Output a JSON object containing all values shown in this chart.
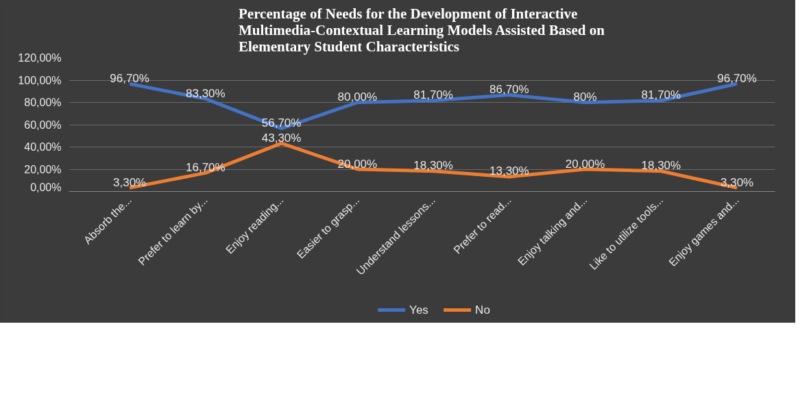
{
  "chart_data": {
    "type": "line",
    "title": "Percentage of Needs for the Development of Interactive Multimedia-Contextual Learning Models Assisted Based on Elementary Student Characteristics",
    "categories": [
      "Absorb the...",
      "Prefer to learn by...",
      "Enjoy reading...",
      "Easier to grasp...",
      "Understand lessons...",
      "Prefer to read...",
      "Enjoy talking and...",
      "Like to utilize tools...",
      "Enjoy games and..."
    ],
    "series": [
      {
        "name": "Yes",
        "color": "#4472c4",
        "values": [
          96.7,
          83.3,
          56.7,
          80.0,
          81.7,
          86.7,
          80,
          81.7,
          96.7
        ],
        "value_labels": [
          "96,70%",
          "83,30%",
          "56,70%",
          "80,00%",
          "81,70%",
          "86,70%",
          "80%",
          "81,70%",
          "96,70%"
        ]
      },
      {
        "name": "No",
        "color": "#ed7d31",
        "values": [
          3.3,
          16.7,
          43.3,
          20.0,
          18.3,
          13.3,
          20.0,
          18.3,
          3.3
        ],
        "value_labels": [
          "3,30%",
          "16,70%",
          "43,30%",
          "20,00%",
          "18,30%",
          "13,30%",
          "20,00%",
          "18,30%",
          "3,30%"
        ]
      }
    ],
    "ylim": [
      0,
      120
    ],
    "yticks": [
      {
        "value": 0,
        "label": "0,00%"
      },
      {
        "value": 20,
        "label": "20,00%"
      },
      {
        "value": 40,
        "label": "40,00%"
      },
      {
        "value": 60,
        "label": "60,00%"
      },
      {
        "value": 80,
        "label": "80,00%"
      },
      {
        "value": 100,
        "label": "100,00%"
      },
      {
        "value": 120,
        "label": "120,00%"
      }
    ],
    "grid": "y",
    "legend": "bottom",
    "marker": "none",
    "line_style": "solid"
  }
}
